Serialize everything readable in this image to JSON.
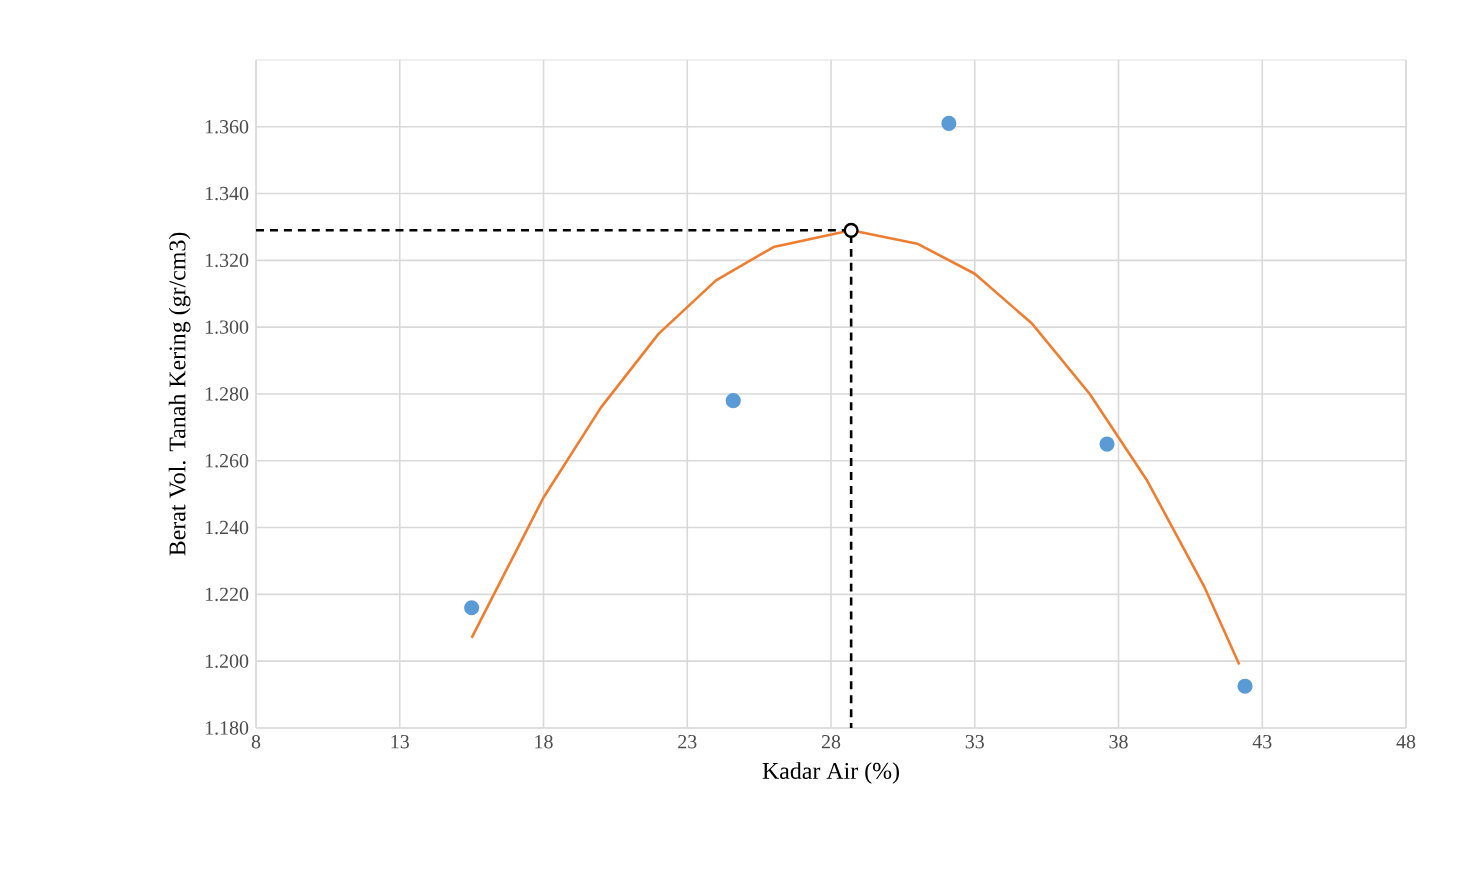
{
  "chart_data": {
    "type": "scatter",
    "xlabel": "Kadar Air (%)",
    "ylabel": "Berat Vol. Tanah Kering (gr/cm3)",
    "xlim": [
      8,
      48
    ],
    "xticks": [
      8,
      13,
      18,
      23,
      28,
      33,
      38,
      43,
      48
    ],
    "ylim": [
      1.18,
      1.38
    ],
    "yticks": [
      {
        "value": 1.18,
        "label": "1.180"
      },
      {
        "value": 1.2,
        "label": "1.200"
      },
      {
        "value": 1.22,
        "label": "1.220"
      },
      {
        "value": 1.24,
        "label": "1.240"
      },
      {
        "value": 1.26,
        "label": "1.260"
      },
      {
        "value": 1.28,
        "label": "1.280"
      },
      {
        "value": 1.3,
        "label": "1.300"
      },
      {
        "value": 1.32,
        "label": "1.320"
      },
      {
        "value": 1.34,
        "label": "1.340"
      },
      {
        "value": 1.36,
        "label": "1.360"
      }
    ],
    "grid": true,
    "series": [
      {
        "color": "#5b9bd5",
        "marker": "circle",
        "x": [
          15.5,
          24.6,
          32.1,
          37.6,
          42.4
        ],
        "values": [
          1.216,
          1.278,
          1.361,
          1.265,
          1.1925
        ]
      },
      {
        "type": "line",
        "color": "#ed7d31",
        "marker": "none",
        "line_style": "solid",
        "x": [
          15.5,
          18,
          20,
          22,
          24,
          26,
          28.7,
          31,
          33,
          35,
          37,
          39,
          41,
          42.2
        ],
        "values": [
          1.207,
          1.249,
          1.276,
          1.298,
          1.314,
          1.324,
          1.329,
          1.325,
          1.316,
          1.301,
          1.28,
          1.254,
          1.222,
          1.199
        ]
      },
      {
        "type": "line",
        "color": "#000000",
        "marker": "none",
        "line_style": "dashed",
        "x": [
          8,
          28.7,
          28.7
        ],
        "values": [
          1.329,
          1.329,
          1.18
        ]
      },
      {
        "type": "scatter",
        "color": "#000000",
        "marker": "circle",
        "x": [
          28.7
        ],
        "values": [
          1.329
        ]
      }
    ]
  }
}
